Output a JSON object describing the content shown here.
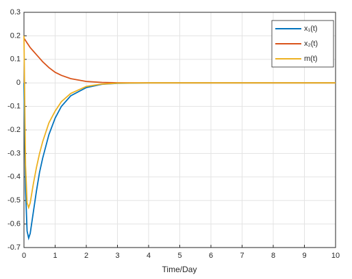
{
  "chart_data": {
    "type": "line",
    "xlabel": "Time/Day",
    "x": [
      0,
      0.05,
      0.1,
      0.15,
      0.2,
      0.3,
      0.4,
      0.5,
      0.6,
      0.8,
      1,
      1.2,
      1.5,
      2,
      2.5,
      3,
      4,
      5,
      6,
      7,
      8,
      9,
      10
    ],
    "series": [
      {
        "name": "x₁(t)",
        "color": "#0072bd",
        "values": [
          0,
          -0.45,
          -0.63,
          -0.66,
          -0.64,
          -0.55,
          -0.46,
          -0.38,
          -0.32,
          -0.22,
          -0.15,
          -0.1,
          -0.055,
          -0.02,
          -0.006,
          -0.002,
          0,
          0,
          0,
          0,
          0,
          0,
          0
        ]
      },
      {
        "name": "x₂(t)",
        "color": "#d95319",
        "values": [
          0.19,
          0.18,
          0.17,
          0.16,
          0.15,
          0.135,
          0.12,
          0.105,
          0.09,
          0.065,
          0.045,
          0.032,
          0.018,
          0.006,
          0.002,
          0.0006,
          0,
          0,
          0,
          0,
          0,
          0,
          0
        ]
      },
      {
        "name": "m(t)",
        "color": "#edb120",
        "values": [
          0.2,
          -0.35,
          -0.51,
          -0.53,
          -0.51,
          -0.43,
          -0.36,
          -0.3,
          -0.25,
          -0.17,
          -0.12,
          -0.08,
          -0.045,
          -0.015,
          -0.005,
          -0.001,
          0,
          0,
          0,
          0,
          0,
          0,
          0
        ]
      }
    ],
    "xlim": [
      0,
      10
    ],
    "xticks": [
      0,
      1,
      2,
      3,
      4,
      5,
      6,
      7,
      8,
      9,
      10
    ],
    "ylim": [
      -0.7,
      0.3
    ],
    "yticks": [
      -0.7,
      -0.6,
      -0.5,
      -0.4,
      -0.3,
      -0.2,
      -0.1,
      0,
      0.1,
      0.2,
      0.3
    ],
    "grid": true,
    "legend": "top-right"
  }
}
